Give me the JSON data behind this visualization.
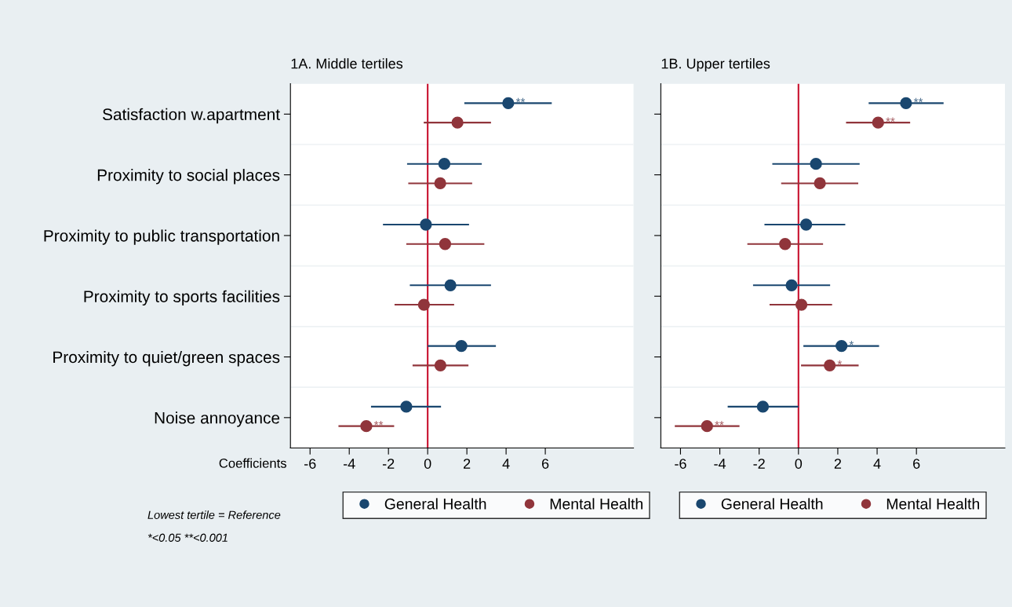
{
  "chart_data": [
    {
      "type": "scatter",
      "orientation": "horizontal",
      "title": "1A. Middle tertiles",
      "xlabel": "Coefficients",
      "categories": [
        "Satisfaction w.apartment",
        "Proximity to social places",
        "Proximity to public transportation",
        "Proximity to sports facilities",
        "Proximity to quiet/green spaces",
        "Noise annoyance"
      ],
      "xlim": [
        -7,
        10.5
      ],
      "xticks": [
        -6,
        -4,
        -2,
        0,
        2,
        4,
        6
      ],
      "marker": "circle",
      "legend": "bottom",
      "grid": false,
      "ref_lines": [
        {
          "axis": "x",
          "value": 0,
          "color": "#c8102e"
        }
      ],
      "series": [
        {
          "name": "General Health",
          "color": "#1a476f",
          "value_labels": [
            "**",
            null,
            null,
            null,
            null,
            null
          ],
          "values": [
            4.11,
            0.85,
            -0.09,
            1.16,
            1.72,
            -1.09
          ],
          "errors": [
            [
              1.87,
              6.33
            ],
            [
              -1.05,
              2.76
            ],
            [
              -2.28,
              2.11
            ],
            [
              -0.91,
              3.23
            ],
            [
              0,
              3.48
            ],
            [
              -2.89,
              0.68
            ]
          ]
        },
        {
          "name": "Mental Health",
          "color": "#90353b",
          "value_labels": [
            null,
            null,
            null,
            null,
            null,
            "**"
          ],
          "values": [
            1.52,
            0.64,
            0.89,
            -0.19,
            0.65,
            -3.13
          ],
          "errors": [
            [
              -0.2,
              3.23
            ],
            [
              -0.99,
              2.27
            ],
            [
              -1.09,
              2.89
            ],
            [
              -1.69,
              1.35
            ],
            [
              -0.77,
              2.08
            ],
            [
              -4.55,
              -1.71
            ]
          ]
        }
      ],
      "annotations": [
        "Lowest tertile = Reference",
        "*<0.05 **<0.001"
      ]
    },
    {
      "type": "scatter",
      "orientation": "horizontal",
      "title": "1B. Upper tertiles",
      "categories": [
        null,
        null,
        null,
        null,
        null,
        null
      ],
      "xlim": [
        -7,
        10.5
      ],
      "xticks": [
        -6,
        -4,
        -2,
        0,
        2,
        4,
        6
      ],
      "marker": "circle",
      "legend": "bottom",
      "grid": false,
      "ref_lines": [
        {
          "axis": "x",
          "value": 0,
          "color": "#c8102e"
        }
      ],
      "series": [
        {
          "name": "General Health",
          "color": "#1a476f",
          "value_labels": [
            "**",
            null,
            null,
            null,
            "*",
            null
          ],
          "values": [
            5.47,
            0.89,
            0.39,
            -0.35,
            2.19,
            -1.81
          ],
          "errors": [
            [
              3.57,
              7.38
            ],
            [
              -1.33,
              3.11
            ],
            [
              -1.73,
              2.38
            ],
            [
              -2.31,
              1.61
            ],
            [
              0.25,
              4.1
            ],
            [
              -3.6,
              0
            ]
          ]
        },
        {
          "name": "Mental Health",
          "color": "#90353b",
          "value_labels": [
            "**",
            null,
            null,
            null,
            "*",
            "**"
          ],
          "values": [
            4.05,
            1.09,
            -0.68,
            0.15,
            1.59,
            -4.65
          ],
          "errors": [
            [
              2.42,
              5.68
            ],
            [
              -0.88,
              3.04
            ],
            [
              -2.6,
              1.25
            ],
            [
              -1.47,
              1.71
            ],
            [
              0.13,
              3.06
            ],
            [
              -6.29,
              -3.0
            ]
          ]
        }
      ]
    }
  ]
}
